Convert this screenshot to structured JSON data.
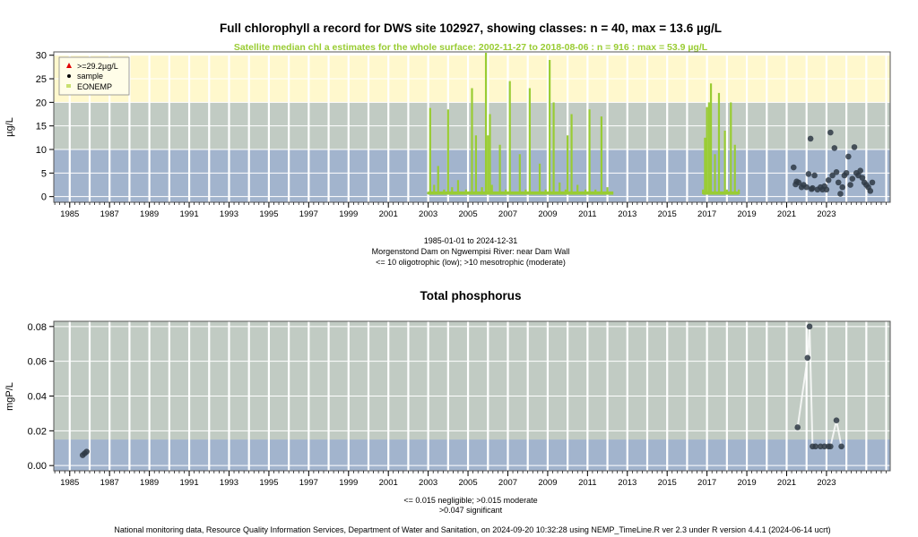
{
  "chart_data": [
    {
      "type": "scatter",
      "title": "Full chlorophyll a record for DWS site 102927, showing classes: n = 40, max = 13.6 µg/L",
      "subtitle": "Satellite median chl a estimates for the whole surface: 2002-11-27 to 2018-08-06 : n = 916 : max = 53.9 µg/L",
      "ylabel": "µg/L",
      "xlim": [
        1984.2,
        2026.2
      ],
      "ylim": [
        -1.2,
        30.7
      ],
      "yticks": [
        0,
        5,
        10,
        15,
        20,
        25,
        30
      ],
      "xticks": [
        "1985",
        "1987",
        "1989",
        "1991",
        "1993",
        "1995",
        "1997",
        "1999",
        "2001",
        "2003",
        "2005",
        "2007",
        "2009",
        "2011",
        "2013",
        "2015",
        "2017",
        "2019",
        "2021",
        "2023"
      ],
      "xtick_years": [
        1985,
        1987,
        1989,
        1991,
        1993,
        1995,
        1997,
        1999,
        2001,
        2003,
        2005,
        2007,
        2009,
        2011,
        2013,
        2015,
        2017,
        2019,
        2021,
        2023
      ],
      "grid": true,
      "legend_position": "top-left",
      "legend": [
        {
          "label": ">=29.2µg/L",
          "marker": "red-triangle"
        },
        {
          "label": "sample",
          "marker": "black-dot"
        },
        {
          "label": "EONEMP",
          "marker": "green-square"
        }
      ],
      "class_bands": [
        {
          "from": 0,
          "to": 10,
          "color": "#a2b4cd"
        },
        {
          "from": 10,
          "to": 20,
          "color": "#c1cbc3"
        },
        {
          "from": 20,
          "to": 30,
          "color": "#fff8cd"
        }
      ],
      "satellite_series": {
        "name": "EONEMP",
        "color": "#99cc33",
        "x": [
          2003.0,
          2003.1,
          2003.3,
          2003.5,
          2003.8,
          2004.0,
          2004.2,
          2004.5,
          2004.9,
          2005.2,
          2005.4,
          2005.7,
          2005.9,
          2006.0,
          2006.1,
          2006.2,
          2006.4,
          2006.6,
          2006.9,
          2007.1,
          2007.3,
          2007.6,
          2007.9,
          2008.1,
          2008.3,
          2008.6,
          2008.9,
          2009.1,
          2009.3,
          2009.6,
          2009.9,
          2010.0,
          2010.2,
          2010.5,
          2010.9,
          2011.1,
          2011.4,
          2011.7,
          2012.0,
          2012.2,
          2016.8,
          2016.9,
          2017.0,
          2017.1,
          2017.2,
          2017.4,
          2017.6,
          2017.9,
          2018.0,
          2018.2,
          2018.4,
          2018.6
        ],
        "values": [
          1.0,
          18.8,
          2.5,
          6.5,
          1.5,
          18.5,
          2.0,
          3.5,
          1.5,
          23.0,
          13.0,
          2.0,
          30.5,
          13.0,
          17.5,
          2.5,
          1.0,
          11.0,
          1.5,
          24.5,
          1.0,
          9.0,
          1.5,
          23.0,
          1.0,
          7.0,
          1.5,
          29.0,
          20.0,
          3.0,
          1.5,
          13.0,
          17.5,
          2.5,
          1.5,
          18.5,
          1.5,
          17.0,
          2.0,
          1.0,
          1.5,
          12.5,
          19.0,
          20.0,
          24.0,
          9.0,
          22.0,
          14.0,
          1.5,
          20.0,
          11.0,
          1.5
        ]
      },
      "sample_series": {
        "name": "sample",
        "x": [
          2021.35,
          2021.45,
          2021.6,
          2021.75,
          2021.85,
          2022.0,
          2022.1,
          2022.2,
          2022.3,
          2022.4,
          2022.55,
          2022.7,
          2022.8,
          2022.9,
          2023.0,
          2023.1,
          2023.2,
          2023.3,
          2023.4,
          2023.5,
          2023.6,
          2023.7,
          2023.8,
          2023.9,
          2024.0,
          2024.1,
          2024.2,
          2024.3,
          2024.4,
          2024.5,
          2024.6,
          2024.7,
          2024.8,
          2024.9,
          2025.0,
          2025.1,
          2025.2,
          2025.3,
          2021.5,
          2022.25
        ],
        "values": [
          6.2,
          2.6,
          3.0,
          2.0,
          2.5,
          2.0,
          4.8,
          12.3,
          1.8,
          4.5,
          1.5,
          2.0,
          1.5,
          2.2,
          1.5,
          3.5,
          13.6,
          4.5,
          10.3,
          5.2,
          3.0,
          0.6,
          2.0,
          4.5,
          5.0,
          8.5,
          2.5,
          3.8,
          10.5,
          5.0,
          4.5,
          5.5,
          4.0,
          3.0,
          2.5,
          2.0,
          1.2,
          3.0,
          3.2,
          1.6
        ]
      },
      "x_range_label": "1985-01-01 to 2024-12-31",
      "site_label": "Morgenstond Dam on Ngwempisi River: near Dam Wall",
      "class_note": "<= 10 oligotrophic (low); >10 mesotrophic (moderate)"
    },
    {
      "type": "scatter",
      "title": "Total phosphorus",
      "ylabel": "mgP/L",
      "xlim": [
        1984.2,
        2026.2
      ],
      "ylim": [
        -0.003,
        0.083
      ],
      "yticks": [
        "0.00",
        "0.02",
        "0.04",
        "0.06",
        "0.08"
      ],
      "ytick_values": [
        0,
        0.02,
        0.04,
        0.06,
        0.08
      ],
      "xticks": [
        "1985",
        "1987",
        "1989",
        "1991",
        "1993",
        "1995",
        "1997",
        "1999",
        "2001",
        "2003",
        "2005",
        "2007",
        "2009",
        "2011",
        "2013",
        "2015",
        "2017",
        "2019",
        "2021",
        "2023"
      ],
      "xtick_years": [
        1985,
        1987,
        1989,
        1991,
        1993,
        1995,
        1997,
        1999,
        2001,
        2003,
        2005,
        2007,
        2009,
        2011,
        2013,
        2015,
        2017,
        2019,
        2021,
        2023
      ],
      "grid": true,
      "class_bands": [
        {
          "from": 0,
          "to": 0.015,
          "color": "#a2b4cd"
        },
        {
          "from": 0.015,
          "to": 0.083,
          "color": "#c1cbc3"
        }
      ],
      "sample_series": {
        "name": "sample",
        "x": [
          1985.65,
          1985.75,
          1985.85,
          2021.55,
          2022.05,
          2022.15,
          2022.3,
          2022.45,
          2022.7,
          2022.9,
          2023.1,
          2023.2,
          2023.5,
          2023.75
        ],
        "values": [
          0.006,
          0.007,
          0.008,
          0.022,
          0.062,
          0.08,
          0.011,
          0.011,
          0.011,
          0.011,
          0.011,
          0.011,
          0.026,
          0.011
        ]
      },
      "class_note_1": "<= 0.015 negligible; >0.015 moderate",
      "class_note_2": ">0.047 significant"
    }
  ],
  "footer": "National monitoring data, Resource Quality Information Services, Department of Water and Sanitation, on 2024-09-20 10:32:28 using NEMP_TimeLine.R ver 2.3 under R version 4.4.1 (2024-06-14 ucrt)"
}
